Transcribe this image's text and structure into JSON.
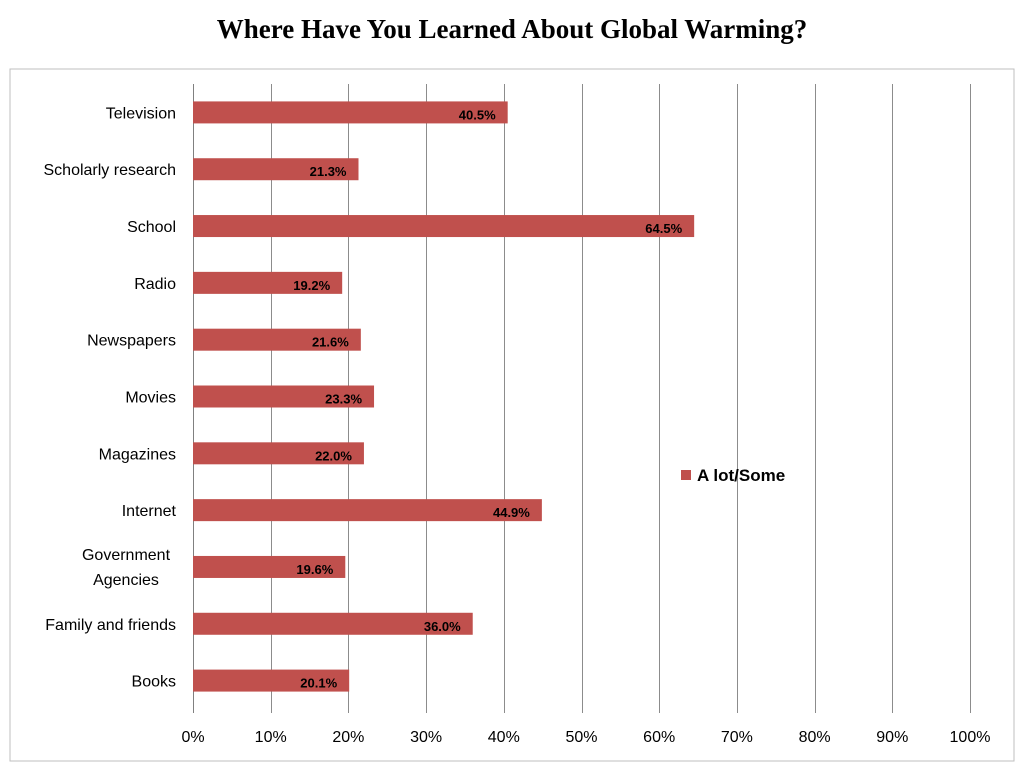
{
  "chart_data": {
    "type": "bar",
    "orientation": "horizontal",
    "title": "Where Have You Learned About Global Warming?",
    "categories": [
      "Television",
      "Scholarly research",
      "School",
      "Radio",
      "Newspapers",
      "Movies",
      "Magazines",
      "Internet",
      "Government Agencies",
      "Family and friends",
      "Books"
    ],
    "series": [
      {
        "name": "A lot/Some",
        "color": "#c0504d",
        "values": [
          40.5,
          21.3,
          64.5,
          19.2,
          21.6,
          23.3,
          22.0,
          44.9,
          19.6,
          36.0,
          20.1
        ],
        "labels": [
          "40.5%",
          "21.3%",
          "64.5%",
          "19.2%",
          "21.6%",
          "23.3%",
          "22.0%",
          "44.9%",
          "19.6%",
          "36.0%",
          "20.1%"
        ]
      }
    ],
    "xlim": [
      0,
      100
    ],
    "xticks": [
      "0%",
      "10%",
      "20%",
      "30%",
      "40%",
      "50%",
      "60%",
      "70%",
      "80%",
      "90%",
      "100%"
    ],
    "grid": "vertical",
    "legend": "right"
  }
}
